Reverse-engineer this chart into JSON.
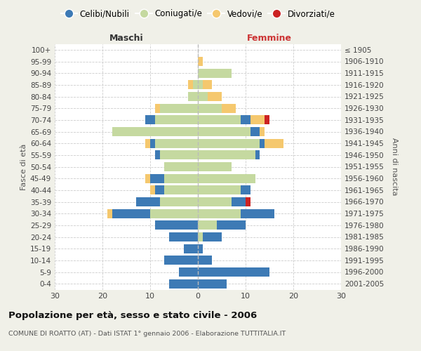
{
  "age_groups": [
    "100+",
    "95-99",
    "90-94",
    "85-89",
    "80-84",
    "75-79",
    "70-74",
    "65-69",
    "60-64",
    "55-59",
    "50-54",
    "45-49",
    "40-44",
    "35-39",
    "30-34",
    "25-29",
    "20-24",
    "15-19",
    "10-14",
    "5-9",
    "0-4"
  ],
  "birth_years": [
    "≤ 1905",
    "1906-1910",
    "1911-1915",
    "1916-1920",
    "1921-1925",
    "1926-1930",
    "1931-1935",
    "1936-1940",
    "1941-1945",
    "1946-1950",
    "1951-1955",
    "1956-1960",
    "1961-1965",
    "1966-1970",
    "1971-1975",
    "1976-1980",
    "1981-1985",
    "1986-1990",
    "1991-1995",
    "1996-2000",
    "2001-2005"
  ],
  "maschi_celibi": [
    0,
    0,
    0,
    0,
    0,
    0,
    2,
    0,
    1,
    1,
    0,
    3,
    2,
    5,
    8,
    9,
    6,
    3,
    7,
    4,
    6
  ],
  "maschi_coniugati": [
    0,
    0,
    0,
    1,
    2,
    8,
    9,
    18,
    9,
    8,
    7,
    7,
    7,
    8,
    10,
    0,
    0,
    0,
    0,
    0,
    0
  ],
  "maschi_vedovi": [
    0,
    0,
    0,
    1,
    0,
    1,
    0,
    0,
    1,
    0,
    0,
    1,
    1,
    0,
    1,
    0,
    0,
    0,
    0,
    0,
    0
  ],
  "maschi_divorziati": [
    0,
    0,
    0,
    0,
    0,
    0,
    0,
    0,
    0,
    0,
    0,
    0,
    0,
    0,
    0,
    0,
    0,
    0,
    0,
    0,
    0
  ],
  "femmine_nubili": [
    0,
    0,
    0,
    0,
    0,
    0,
    2,
    2,
    1,
    1,
    0,
    0,
    2,
    3,
    7,
    6,
    4,
    1,
    3,
    15,
    6
  ],
  "femmine_coniugate": [
    0,
    0,
    7,
    1,
    2,
    5,
    9,
    11,
    13,
    12,
    7,
    12,
    9,
    7,
    9,
    4,
    1,
    0,
    0,
    0,
    0
  ],
  "femmine_vedove": [
    0,
    1,
    0,
    2,
    3,
    3,
    3,
    1,
    4,
    0,
    0,
    0,
    0,
    0,
    0,
    0,
    0,
    0,
    0,
    0,
    0
  ],
  "femmine_divorziate": [
    0,
    0,
    0,
    0,
    0,
    0,
    1,
    0,
    0,
    0,
    0,
    0,
    0,
    1,
    0,
    0,
    0,
    0,
    0,
    0,
    0
  ],
  "color_celibi": "#3d7ab5",
  "color_coniugati": "#c5d9a0",
  "color_vedovi": "#f5c86e",
  "color_divorziati": "#cc2222",
  "xlim": 30,
  "title": "Popolazione per età, sesso e stato civile - 2006",
  "subtitle": "COMUNE DI ROATTO (AT) - Dati ISTAT 1° gennaio 2006 - Elaborazione TUTTITALIA.IT",
  "ylabel_left": "Fasce di età",
  "ylabel_right": "Anni di nascita",
  "label_maschi": "Maschi",
  "label_femmine": "Femmine",
  "bg_color": "#f0f0e8",
  "plot_bg_color": "#ffffff",
  "legend_labels": [
    "Celibi/Nubili",
    "Coniugati/e",
    "Vedovi/e",
    "Divorziati/e"
  ]
}
